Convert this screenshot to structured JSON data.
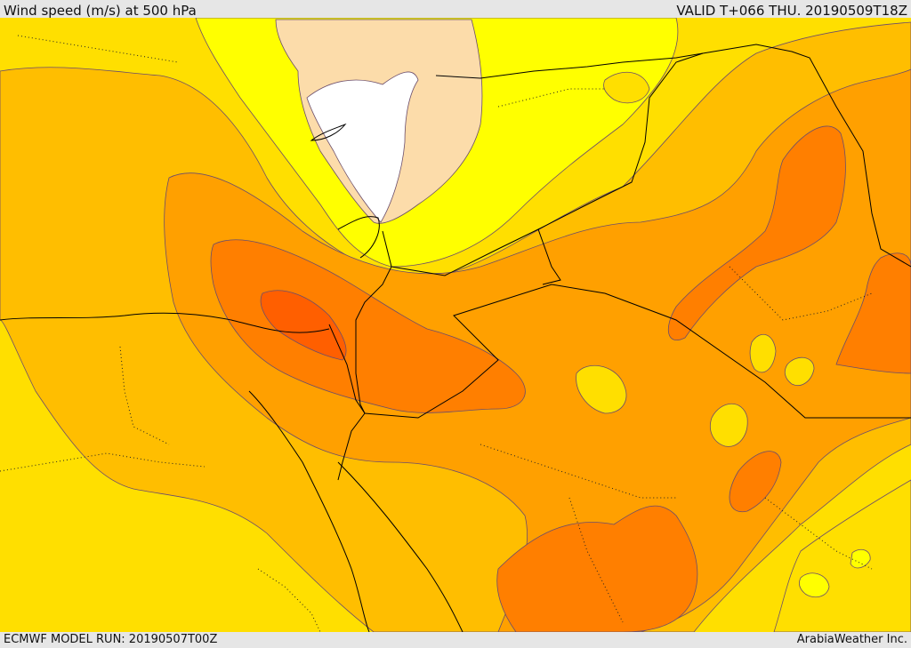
{
  "header": {
    "title": "Wind speed (m/s) at 500 hPa",
    "valid_time": "VALID T+066 THU. 20190509T18Z"
  },
  "footer": {
    "model_run": "ECMWF MODEL RUN: 20190507T00Z",
    "credit": "ArabiaWeather Inc."
  },
  "map": {
    "field": "wind speed",
    "level": "500 hPa",
    "fill_levels": [
      {
        "name": "level-0",
        "color": "#ffffff"
      },
      {
        "name": "level-1",
        "color": "#fcdcaa"
      },
      {
        "name": "level-2",
        "color": "#ffff00"
      },
      {
        "name": "level-3",
        "color": "#ffdf00"
      },
      {
        "name": "level-4",
        "color": "#ffbe00"
      },
      {
        "name": "level-5",
        "color": "#ffa000"
      },
      {
        "name": "level-6",
        "color": "#ff7f00"
      },
      {
        "name": "level-7",
        "color": "#ff5f00"
      }
    ],
    "contour_color": "#6b4d6b",
    "border_color": "#000000",
    "admin_line_style": "dotted"
  }
}
